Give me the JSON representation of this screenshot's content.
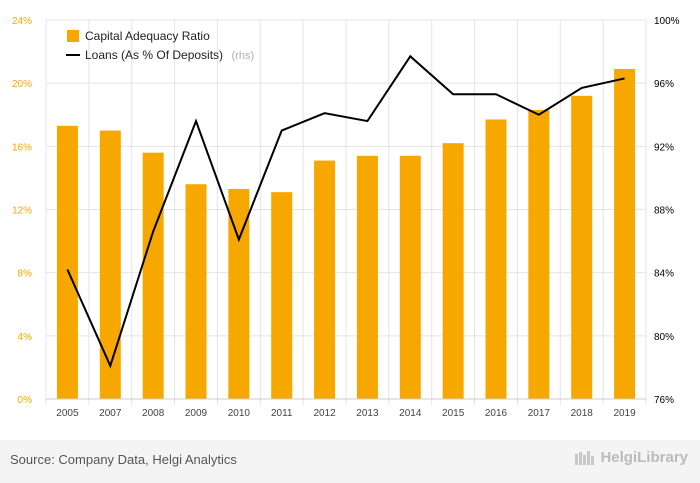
{
  "chart_data": {
    "type": "bar",
    "categories": [
      "2005",
      "2007",
      "2008",
      "2009",
      "2010",
      "2011",
      "2012",
      "2013",
      "2014",
      "2015",
      "2016",
      "2017",
      "2018",
      "2019"
    ],
    "series": [
      {
        "name": "Capital Adequacy Ratio",
        "type": "bar",
        "axis": "left",
        "color": "#f6a800",
        "values": [
          17.3,
          17.0,
          15.6,
          13.6,
          13.3,
          13.1,
          15.1,
          15.4,
          15.4,
          16.2,
          17.7,
          18.3,
          19.2,
          20.9
        ]
      },
      {
        "name": "Loans (As % Of Deposits)",
        "name_suffix": "(rhs)",
        "type": "line",
        "axis": "right",
        "color": "#000000",
        "values": [
          84.2,
          78.1,
          86.6,
          93.6,
          86.1,
          93.0,
          94.1,
          93.6,
          97.7,
          95.3,
          95.3,
          94.0,
          95.7,
          96.3
        ]
      }
    ],
    "y_left": {
      "ylim": [
        0,
        24
      ],
      "ticks": [
        "0%",
        "4%",
        "8%",
        "12%",
        "16%",
        "20%",
        "24%"
      ],
      "color": "#f6a800"
    },
    "y_right": {
      "ylim": [
        76,
        100
      ],
      "ticks": [
        "76%",
        "80%",
        "84%",
        "88%",
        "92%",
        "96%",
        "100%"
      ],
      "color": "#000000"
    },
    "grid": true,
    "legend_placement": "top-left"
  },
  "footer": {
    "source": "Source: Company Data, Helgi Analytics",
    "brand": "HelgiLibrary"
  }
}
